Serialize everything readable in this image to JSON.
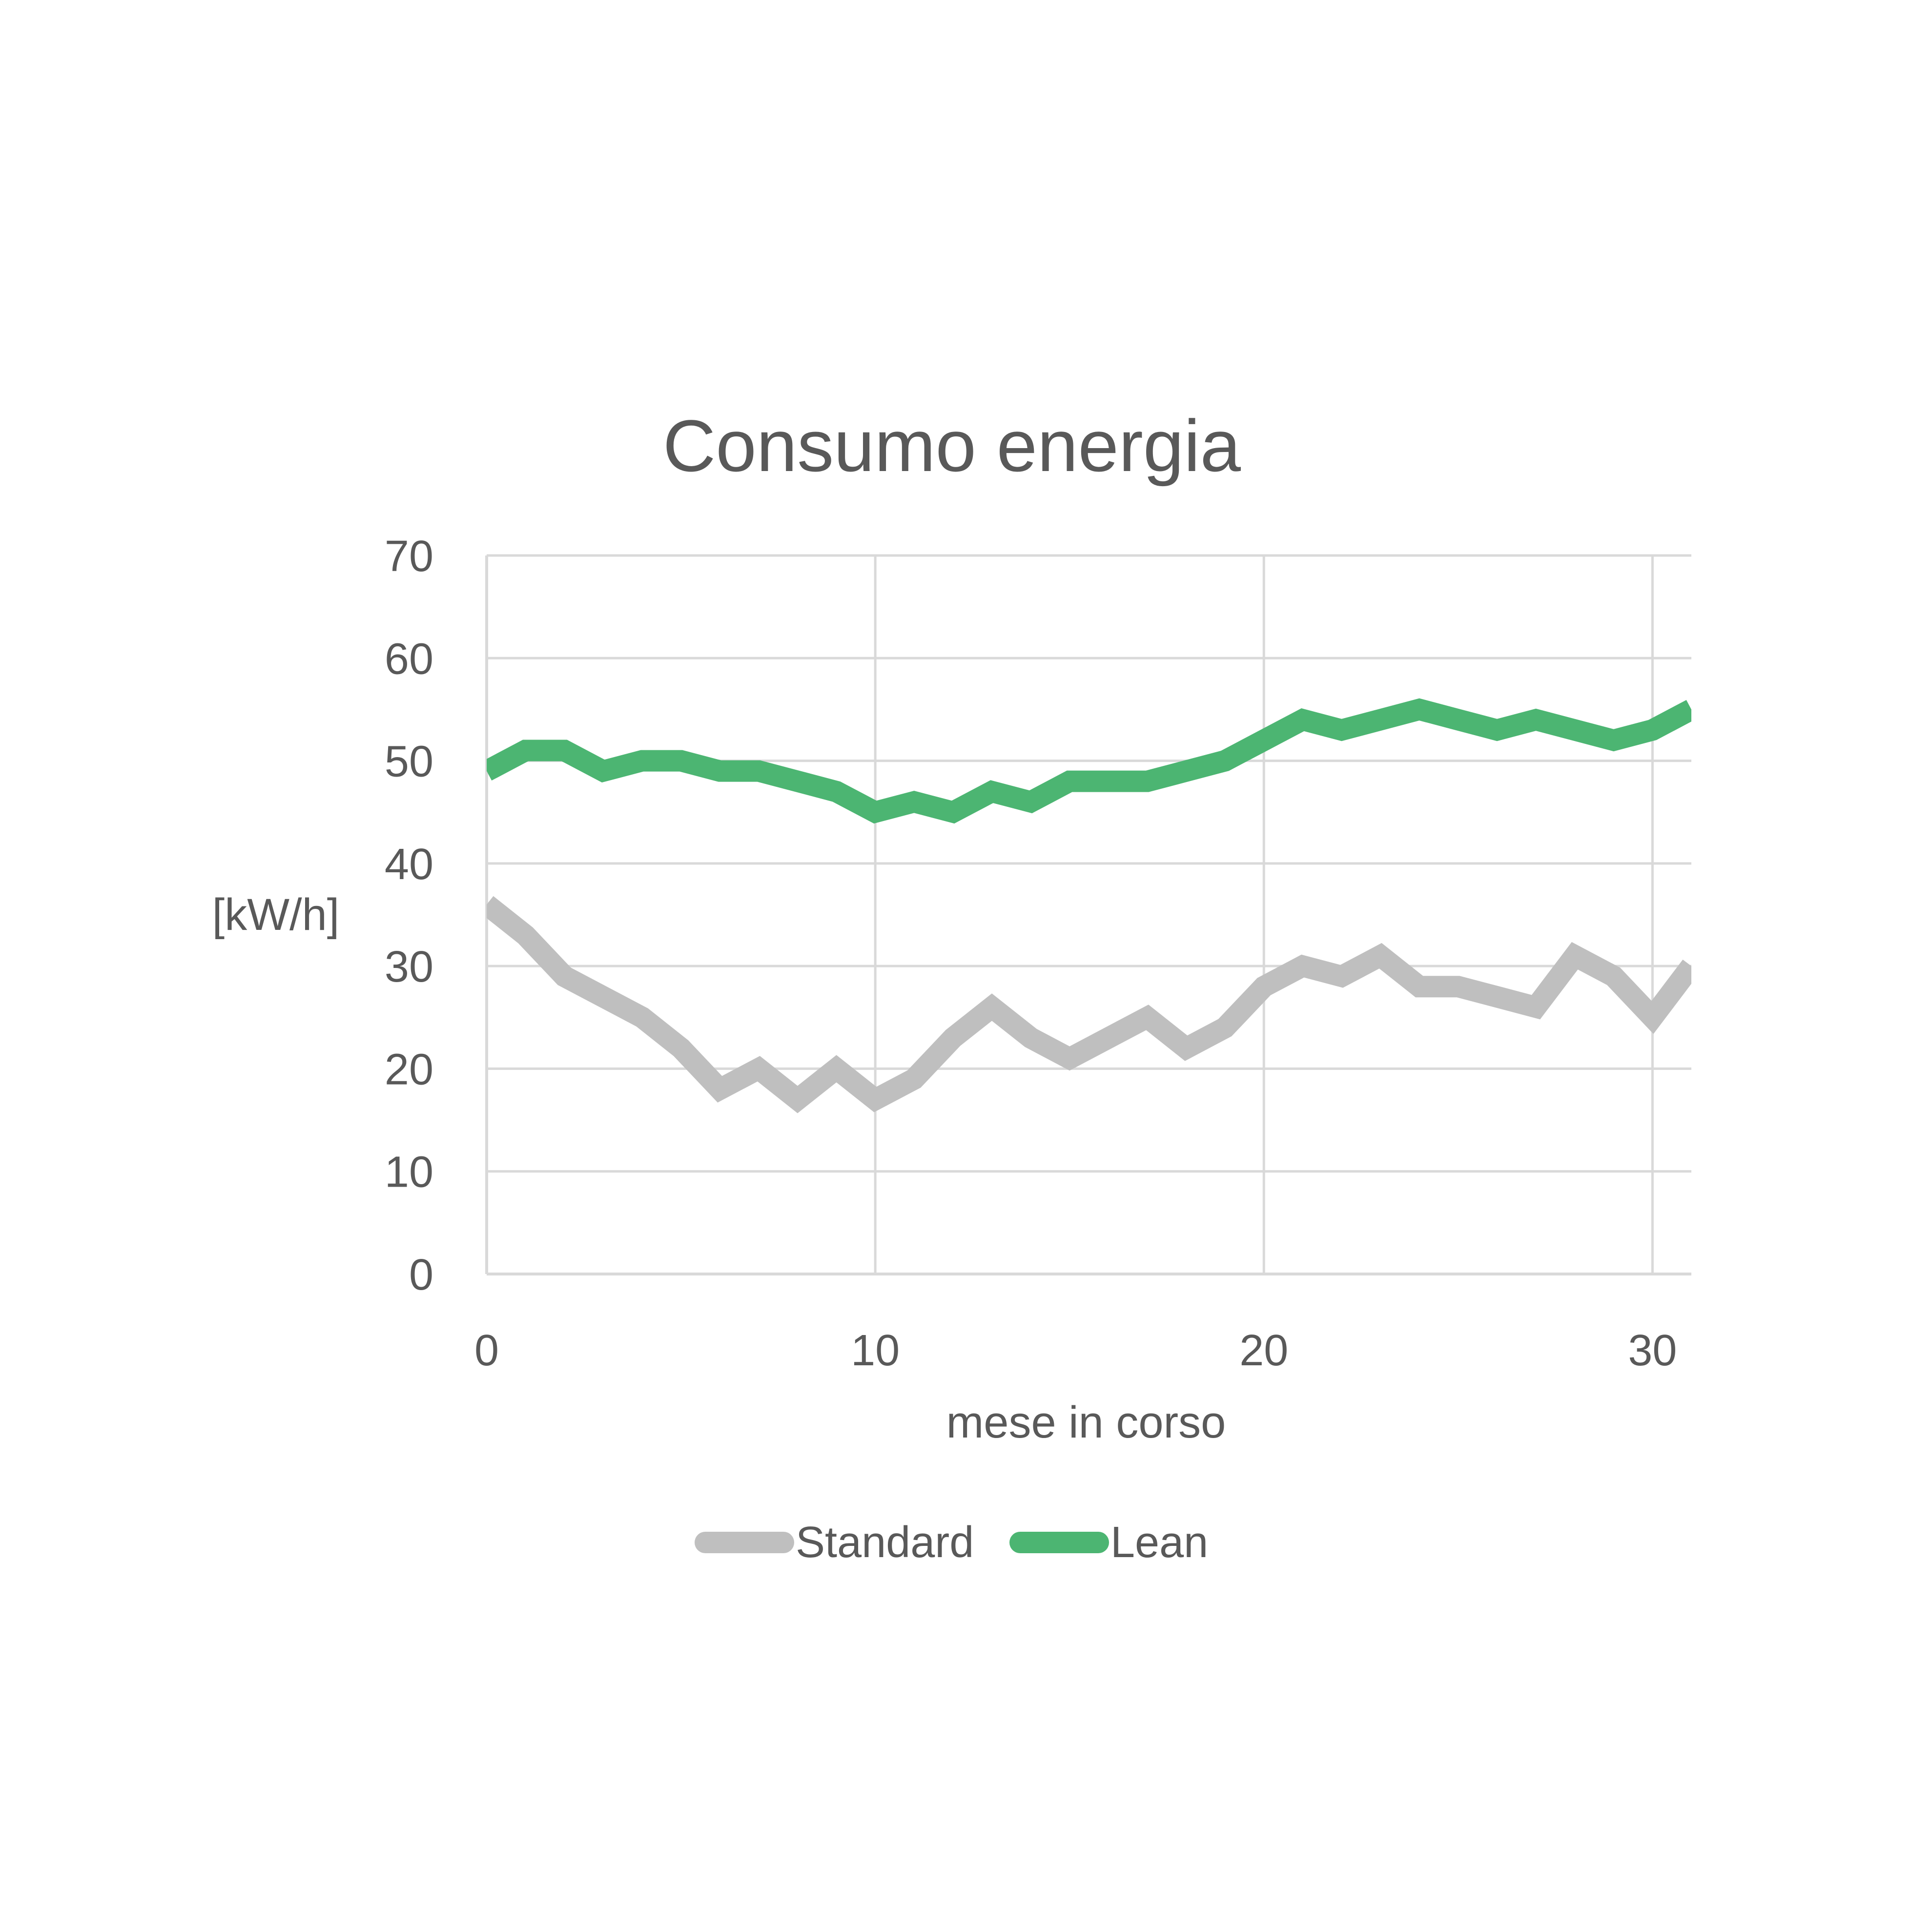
{
  "chart_data": {
    "type": "line",
    "title": "Consumo energia",
    "xlabel": "mese in corso",
    "ylabel": "[kW/h]",
    "xlim": [
      0,
      31
    ],
    "ylim": [
      0,
      70
    ],
    "x_ticks": [
      0,
      10,
      20,
      30
    ],
    "y_ticks": [
      0,
      10,
      20,
      30,
      40,
      50,
      60,
      70
    ],
    "grid": true,
    "legend_position": "bottom",
    "x": [
      0,
      1,
      2,
      3,
      4,
      5,
      6,
      7,
      8,
      9,
      10,
      11,
      12,
      13,
      14,
      15,
      16,
      17,
      18,
      19,
      20,
      21,
      22,
      23,
      24,
      25,
      26,
      27,
      28,
      29,
      30,
      31
    ],
    "series": [
      {
        "name": "Standard",
        "color": "#BFBFBF",
        "values": [
          36,
          33,
          29,
          27,
          25,
          22,
          18,
          20,
          17,
          20,
          17,
          19,
          23,
          26,
          23,
          21,
          23,
          25,
          22,
          24,
          28,
          30,
          29,
          31,
          28,
          28,
          27,
          26,
          31,
          29,
          25,
          30
        ]
      },
      {
        "name": "Lean",
        "color": "#4CB572",
        "values": [
          49,
          51,
          51,
          49,
          50,
          50,
          49,
          49,
          48,
          47,
          45,
          46,
          45,
          47,
          46,
          48,
          48,
          48,
          49,
          50,
          52,
          54,
          53,
          54,
          55,
          54,
          53,
          54,
          53,
          52,
          53,
          55
        ]
      }
    ],
    "colors": {
      "gridline": "#D9D9D9",
      "text": "#595959"
    }
  }
}
